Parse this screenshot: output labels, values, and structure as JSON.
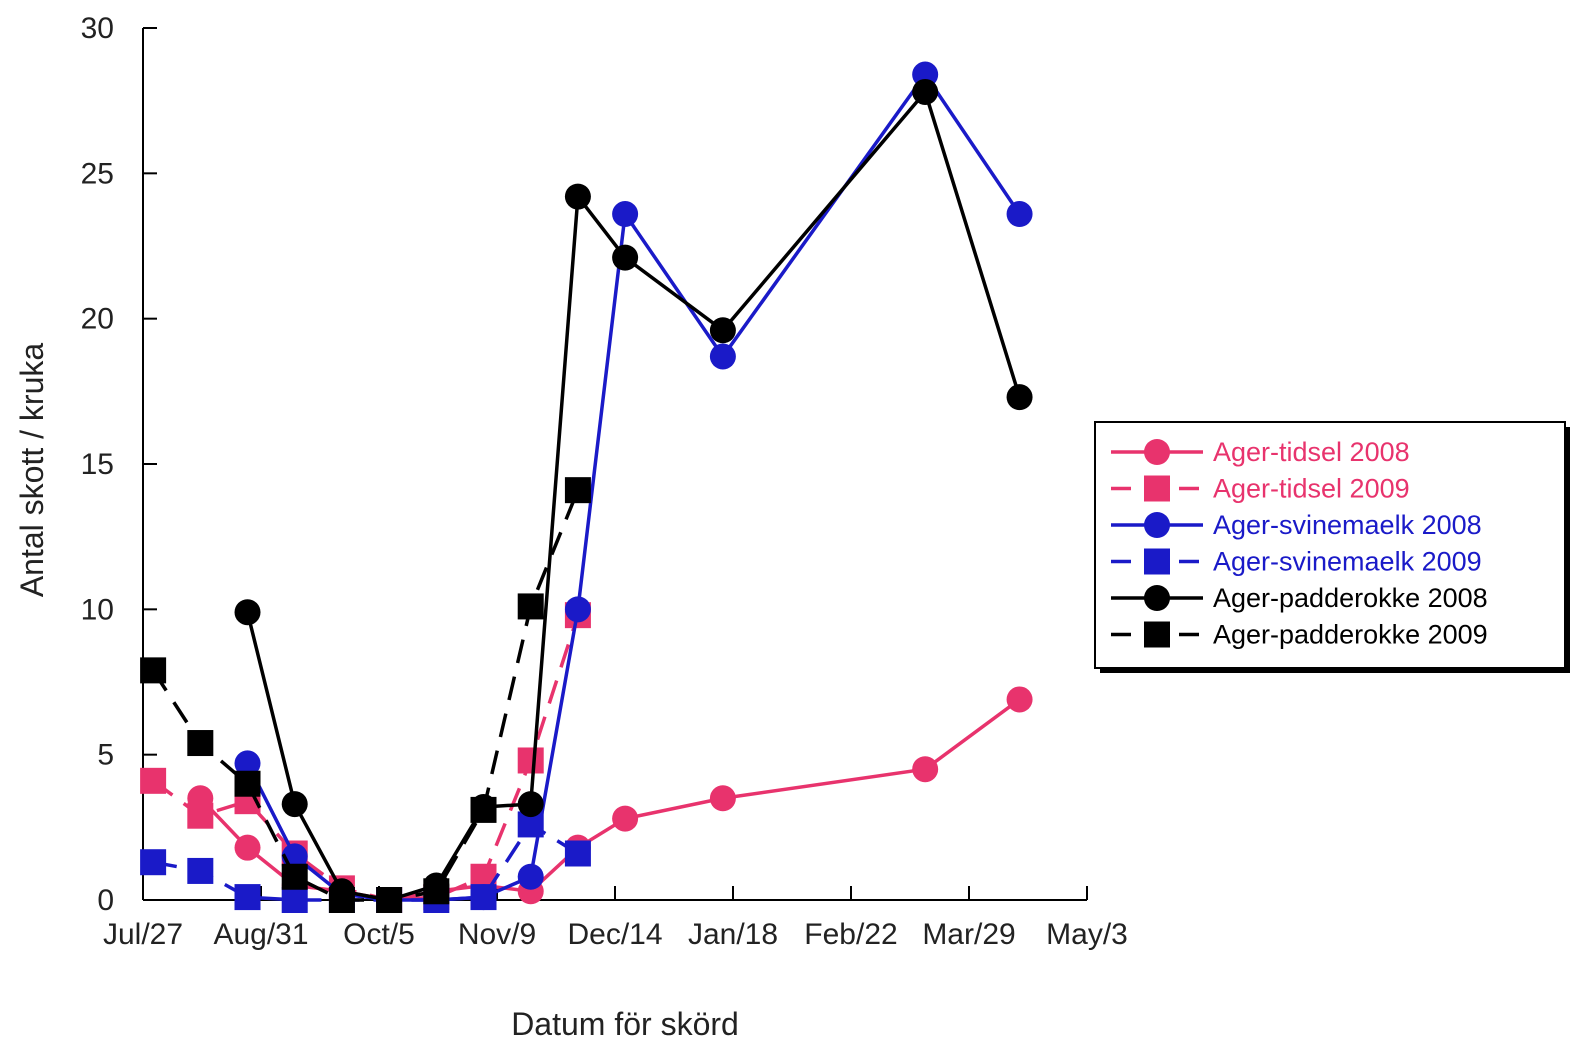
{
  "chart_data": {
    "type": "line",
    "xlabel": "Datum för skörd",
    "ylabel": "Antal skott  / kruka",
    "x_ticks": [
      "Jul/27",
      "Aug/31",
      "Oct/5",
      "Nov/9",
      "Dec/14",
      "Jan/18",
      "Feb/22",
      "Mar/29",
      "May/3"
    ],
    "y_ticks": [
      "0",
      "5",
      "10",
      "15",
      "20",
      "25",
      "30"
    ],
    "xlim": [
      "Jul/27",
      "May/3"
    ],
    "ylim": [
      0,
      30
    ],
    "legend_position": "right",
    "series": [
      {
        "name": "Ager-tidsel 2008",
        "color": "#e8336d",
        "marker": "circle",
        "dash": false,
        "points": [
          [
            "Aug/13",
            3.5
          ],
          [
            "Aug/27",
            1.8
          ],
          [
            "Sep/10",
            0.5
          ],
          [
            "Sep/24",
            0.3
          ],
          [
            "Oct/8",
            0.0
          ],
          [
            "Oct/22",
            0.3
          ],
          [
            "Nov/5",
            0.5
          ],
          [
            "Nov/19",
            0.3
          ],
          [
            "Dec/3",
            1.8
          ],
          [
            "Dec/17",
            2.8
          ],
          [
            "Jan/15",
            3.5
          ],
          [
            "Mar/16",
            4.5
          ],
          [
            "Apr/13",
            6.9
          ]
        ]
      },
      {
        "name": "Ager-tidsel 2009",
        "color": "#e8336d",
        "marker": "square",
        "dash": true,
        "points": [
          [
            "Jul/30",
            4.1
          ],
          [
            "Aug/13",
            2.9
          ],
          [
            "Aug/27",
            3.4
          ],
          [
            "Sep/10",
            1.6
          ],
          [
            "Sep/24",
            0.4
          ],
          [
            "Oct/8",
            0.0
          ],
          [
            "Oct/22",
            0.1
          ],
          [
            "Nov/5",
            0.8
          ],
          [
            "Nov/19",
            4.8
          ],
          [
            "Dec/3",
            9.8
          ]
        ]
      },
      {
        "name": "Ager-svinemaelk 2008",
        "color": "#1a1ac8",
        "marker": "circle",
        "dash": false,
        "points": [
          [
            "Aug/27",
            4.7
          ],
          [
            "Sep/10",
            1.5
          ],
          [
            "Sep/24",
            0.2
          ],
          [
            "Oct/8",
            0.0
          ],
          [
            "Oct/22",
            0.0
          ],
          [
            "Nov/5",
            0.1
          ],
          [
            "Nov/19",
            0.8
          ],
          [
            "Dec/3",
            10.0
          ],
          [
            "Dec/17",
            23.6
          ],
          [
            "Jan/15",
            18.7
          ],
          [
            "Mar/16",
            28.4
          ],
          [
            "Apr/13",
            23.6
          ]
        ]
      },
      {
        "name": "Ager-svinemaelk 2009",
        "color": "#1a1ac8",
        "marker": "square",
        "dash": true,
        "points": [
          [
            "Jul/30",
            1.3
          ],
          [
            "Aug/13",
            1.0
          ],
          [
            "Aug/27",
            0.1
          ],
          [
            "Sep/10",
            0.0
          ],
          [
            "Sep/24",
            0.0
          ],
          [
            "Oct/8",
            0.0
          ],
          [
            "Oct/22",
            0.0
          ],
          [
            "Nov/5",
            0.1
          ],
          [
            "Nov/19",
            2.6
          ],
          [
            "Dec/3",
            1.6
          ]
        ]
      },
      {
        "name": "Ager-padderokke 2008",
        "color": "#000000",
        "marker": "circle",
        "dash": false,
        "points": [
          [
            "Aug/27",
            9.9
          ],
          [
            "Sep/10",
            3.3
          ],
          [
            "Sep/24",
            0.3
          ],
          [
            "Oct/8",
            0.0
          ],
          [
            "Oct/22",
            0.5
          ],
          [
            "Nov/5",
            3.2
          ],
          [
            "Nov/19",
            3.3
          ],
          [
            "Dec/3",
            24.2
          ],
          [
            "Dec/17",
            22.1
          ],
          [
            "Jan/15",
            19.6
          ],
          [
            "Mar/16",
            27.8
          ],
          [
            "Apr/13",
            17.3
          ]
        ]
      },
      {
        "name": "Ager-padderokke 2009",
        "color": "#000000",
        "marker": "square",
        "dash": true,
        "points": [
          [
            "Jul/30",
            7.9
          ],
          [
            "Aug/13",
            5.4
          ],
          [
            "Aug/27",
            4.0
          ],
          [
            "Sep/10",
            0.8
          ],
          [
            "Sep/24",
            0.0
          ],
          [
            "Oct/8",
            0.0
          ],
          [
            "Oct/22",
            0.3
          ],
          [
            "Nov/5",
            3.1
          ],
          [
            "Nov/19",
            10.1
          ],
          [
            "Dec/3",
            14.1
          ]
        ]
      }
    ]
  }
}
